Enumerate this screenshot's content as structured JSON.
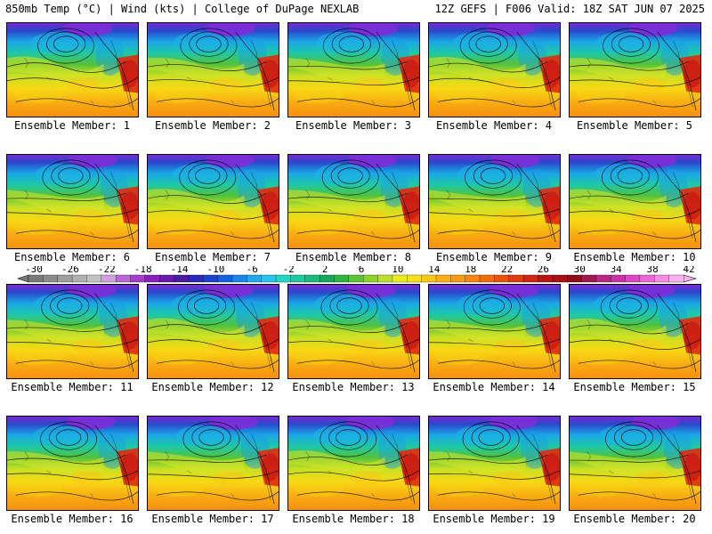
{
  "header": {
    "left": "850mb Temp (°C) | Wind (kts) | College of DuPage NEXLAB",
    "right": "12Z GEFS | F006 Valid: 18Z SAT JUN 07 2025"
  },
  "members": [
    {
      "label": "Ensemble Member: 1"
    },
    {
      "label": "Ensemble Member: 2"
    },
    {
      "label": "Ensemble Member: 3"
    },
    {
      "label": "Ensemble Member: 4"
    },
    {
      "label": "Ensemble Member: 5"
    },
    {
      "label": "Ensemble Member: 6"
    },
    {
      "label": "Ensemble Member: 7"
    },
    {
      "label": "Ensemble Member: 8"
    },
    {
      "label": "Ensemble Member: 9"
    },
    {
      "label": "Ensemble Member: 10"
    },
    {
      "label": "Ensemble Member: 11"
    },
    {
      "label": "Ensemble Member: 12"
    },
    {
      "label": "Ensemble Member: 13"
    },
    {
      "label": "Ensemble Member: 14"
    },
    {
      "label": "Ensemble Member: 15"
    },
    {
      "label": "Ensemble Member: 16"
    },
    {
      "label": "Ensemble Member: 17"
    },
    {
      "label": "Ensemble Member: 18"
    },
    {
      "label": "Ensemble Member: 19"
    },
    {
      "label": "Ensemble Member: 20"
    }
  ],
  "colorbar": {
    "tick_labels": [
      "-30",
      "-26",
      "-22",
      "-18",
      "-14",
      "-10",
      "-6",
      "-2",
      "2",
      "6",
      "10",
      "14",
      "18",
      "22",
      "26",
      "30",
      "34",
      "38",
      "42"
    ],
    "colors": [
      "#7a7a7a",
      "#8c8c8c",
      "#9e9e9e",
      "#b0b0b0",
      "#c2c2c2",
      "#cfa0e0",
      "#bb66d6",
      "#a63ccc",
      "#8a1fc0",
      "#6a1aa8",
      "#4a1c9e",
      "#2a28b8",
      "#1a44d0",
      "#1462e2",
      "#1a86ea",
      "#22a8ec",
      "#26c6e6",
      "#22d6c6",
      "#1ecaa0",
      "#1ab87a",
      "#16a85a",
      "#30b440",
      "#5cc434",
      "#8cd22c",
      "#bce028",
      "#e8ec1a",
      "#f8e01a",
      "#fcc814",
      "#fcb012",
      "#f89a12",
      "#f6840e",
      "#f26c0c",
      "#ea520c",
      "#e03a0e",
      "#d22410",
      "#c01414",
      "#a80c14",
      "#900c1c",
      "#a01850",
      "#b82880",
      "#cc30a8",
      "#de44c4",
      "#ec66d6",
      "#f48ae2",
      "#f8b0ee"
    ]
  }
}
